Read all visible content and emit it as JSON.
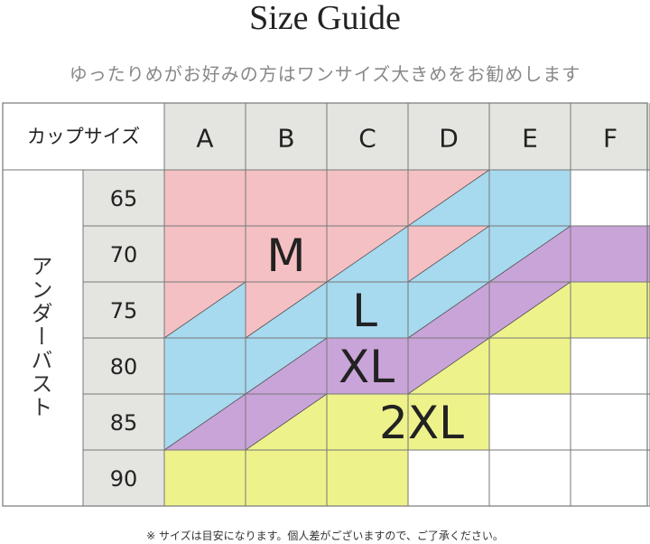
{
  "title": "Size Guide",
  "subtitle": "ゆったりめがお好みの方はワンサイズ大きめをお勧めします",
  "table": {
    "corner_label": "カップサイズ",
    "row_header_label": "アンダーバスト",
    "cup_sizes": [
      "A",
      "B",
      "C",
      "D",
      "E",
      "F"
    ],
    "under_bust": [
      "65",
      "70",
      "75",
      "80",
      "85",
      "90"
    ],
    "colors": {
      "M": "#f5c0c3",
      "L": "#a7d9ef",
      "XL": "#c9a4d8",
      "2XL": "#eef28b",
      "none": "#ffffff",
      "header": "#e4e5e0"
    },
    "cells": [
      [
        "M",
        "M",
        "M",
        "M/L",
        "L",
        "none"
      ],
      [
        "M",
        "M",
        "M/L",
        "M/L",
        "L/XL",
        "XL"
      ],
      [
        "M/L",
        "M/L",
        "L",
        "L/XL",
        "XL/2XL",
        "2XL"
      ],
      [
        "L",
        "L/XL",
        "XL",
        "XL/2XL",
        "2XL",
        "none"
      ],
      [
        "L/XL",
        "XL/2XL",
        "2XL",
        "2XL",
        "none",
        "none"
      ],
      [
        "2XL",
        "2XL",
        "2XL",
        "none",
        "none",
        "none"
      ]
    ],
    "size_labels": [
      "M",
      "L",
      "XL",
      "2XL"
    ]
  },
  "footnote": "※ サイズは目安になります。個人差がございますので、ご了承ください。"
}
